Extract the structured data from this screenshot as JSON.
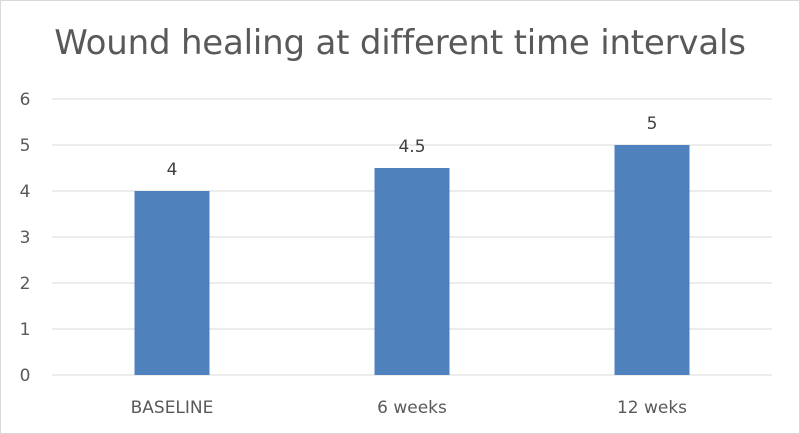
{
  "chart_data": {
    "type": "bar",
    "title": "Wound healing at different time intervals",
    "xlabel": "",
    "ylabel": "",
    "categories": [
      "BASELINE",
      "6 weeks",
      "12 weks"
    ],
    "values": [
      4,
      4.5,
      5
    ],
    "data_labels": [
      "4",
      "4.5",
      "5"
    ],
    "ylim": [
      0,
      6
    ],
    "yticks": [
      0,
      1,
      2,
      3,
      4,
      5,
      6
    ],
    "ytick_labels": [
      "0",
      "1",
      "2",
      "3",
      "4",
      "5",
      "6"
    ],
    "grid": true,
    "legend": "none",
    "bar_color": "#4f81bd",
    "gridline_color": "#d9d9d9"
  }
}
